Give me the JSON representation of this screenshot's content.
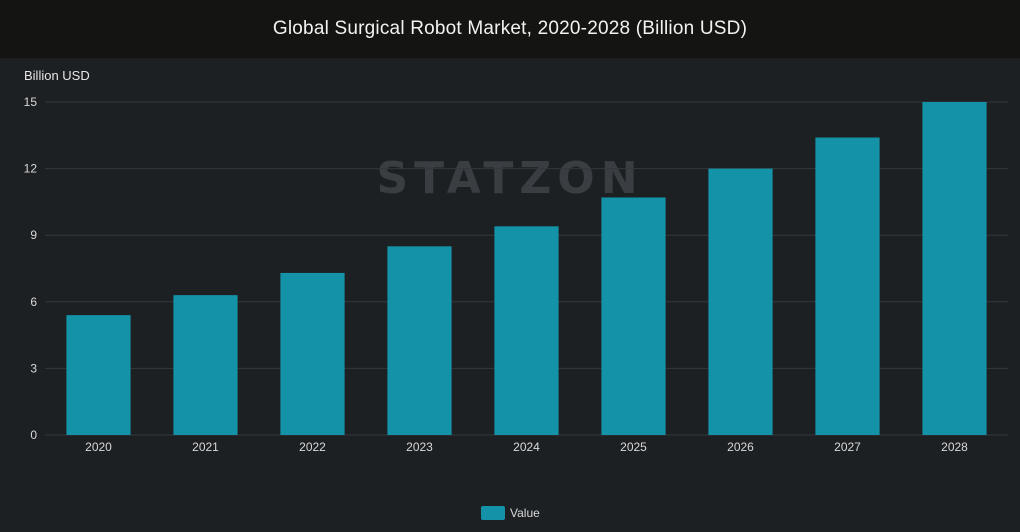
{
  "chart_data": {
    "type": "bar",
    "title": "Global Surgical Robot Market, 2020-2028 (Billion USD)",
    "ylabel": "Billion USD",
    "xlabel": "",
    "categories": [
      "2020",
      "2021",
      "2022",
      "2023",
      "2024",
      "2025",
      "2026",
      "2027",
      "2028"
    ],
    "series": [
      {
        "name": "Value",
        "values": [
          5.4,
          6.3,
          7.3,
          8.5,
          9.4,
          10.7,
          12.0,
          13.4,
          15.0
        ]
      }
    ],
    "ylim": [
      0,
      15
    ],
    "yticks": [
      "0",
      "3",
      "6",
      "9",
      "12",
      "15"
    ],
    "grid": true,
    "legend": "bottom-center",
    "colors": {
      "bar": "#1493a8",
      "grid": "#34383c",
      "background": "#1d2023",
      "title_bar": "#141512"
    }
  },
  "watermark": "STATZON"
}
